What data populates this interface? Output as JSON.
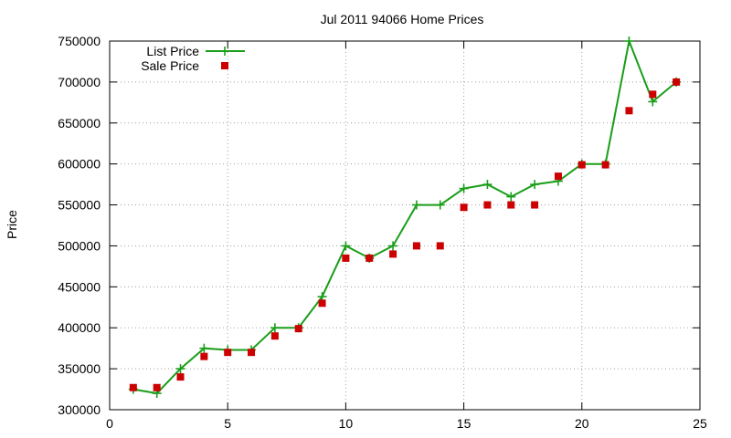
{
  "chart_data": {
    "type": "line",
    "title": "Jul 2011 94066 Home Prices",
    "xlabel": "",
    "ylabel": "Price",
    "xlim": [
      0,
      25
    ],
    "ylim": [
      300000,
      750000
    ],
    "x_ticks": [
      "0",
      "5",
      "10",
      "15",
      "20",
      "25"
    ],
    "y_ticks": [
      "300000",
      "350000",
      "400000",
      "450000",
      "500000",
      "550000",
      "600000",
      "650000",
      "700000",
      "750000"
    ],
    "grid": true,
    "legend_position": "top-left",
    "series": [
      {
        "name": "List Price",
        "style": "line+cross",
        "color": "#1a9e1a",
        "points": [
          [
            1,
            325000
          ],
          [
            2,
            320000
          ],
          [
            3,
            350000
          ],
          [
            4,
            375000
          ],
          [
            5,
            373000
          ],
          [
            6,
            373000
          ],
          [
            7,
            400000
          ],
          [
            8,
            400000
          ],
          [
            9,
            438000
          ],
          [
            10,
            500000
          ],
          [
            11,
            485000
          ],
          [
            12,
            500000
          ],
          [
            13,
            550000
          ],
          [
            14,
            550000
          ],
          [
            15,
            570000
          ],
          [
            16,
            575000
          ],
          [
            17,
            560000
          ],
          [
            18,
            575000
          ],
          [
            19,
            579000
          ],
          [
            20,
            600000
          ],
          [
            21,
            600000
          ],
          [
            22,
            750000
          ],
          [
            23,
            676000
          ],
          [
            24,
            700000
          ]
        ]
      },
      {
        "name": "Sale Price",
        "style": "square",
        "color": "#cc0000",
        "points": [
          [
            1,
            327000
          ],
          [
            2,
            327000
          ],
          [
            3,
            340000
          ],
          [
            4,
            365000
          ],
          [
            5,
            370000
          ],
          [
            6,
            370000
          ],
          [
            7,
            390000
          ],
          [
            8,
            399000
          ],
          [
            9,
            430000
          ],
          [
            10,
            485000
          ],
          [
            11,
            485000
          ],
          [
            12,
            490000
          ],
          [
            13,
            500000
          ],
          [
            14,
            500000
          ],
          [
            15,
            547000
          ],
          [
            16,
            550000
          ],
          [
            17,
            550000
          ],
          [
            18,
            550000
          ],
          [
            19,
            585000
          ],
          [
            20,
            599000
          ],
          [
            21,
            599000
          ],
          [
            22,
            665000
          ],
          [
            23,
            685000
          ],
          [
            24,
            700000
          ]
        ]
      }
    ]
  }
}
